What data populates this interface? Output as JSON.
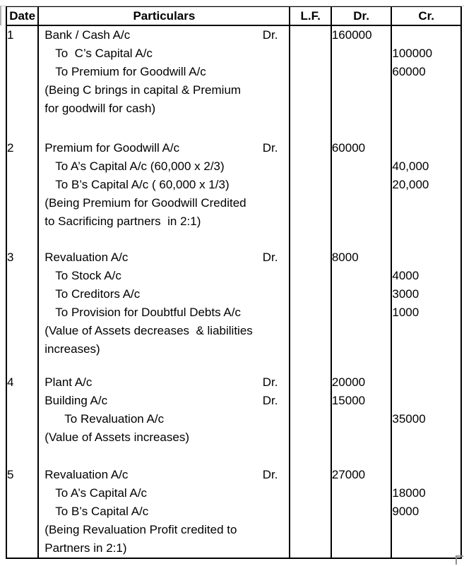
{
  "table": {
    "headers": {
      "date": "Date",
      "particulars": "Particulars",
      "lf": "L.F.",
      "dr": "Dr.",
      "cr": "Cr."
    },
    "entries": [
      {
        "sno": "1",
        "lines": [
          {
            "text": "Bank / Cash A/c",
            "suffix": "Dr.",
            "indent": 0,
            "dr": "160000",
            "cr": ""
          },
          {
            "text": "To  C’s Capital A/c",
            "indent": 1,
            "dr": "",
            "cr": "100000"
          },
          {
            "text": "To Premium for Goodwill A/c",
            "indent": 1,
            "dr": "",
            "cr": "60000"
          },
          {
            "text": "(Being C brings in capital & Premium",
            "indent": 0,
            "dr": "",
            "cr": ""
          },
          {
            "text": "for goodwill for cash)",
            "indent": 0,
            "dr": "",
            "cr": ""
          }
        ]
      },
      {
        "sno": "2",
        "lines": [
          {
            "text": "Premium for Goodwill A/c",
            "suffix": "Dr.",
            "indent": 0,
            "dr": "60000",
            "cr": ""
          },
          {
            "text": "To A’s Capital A/c (60,000 x 2/3)",
            "indent": 1,
            "dr": "",
            "cr": "40,000"
          },
          {
            "text": "To B’s Capital A/c ( 60,000 x 1/3)",
            "indent": 1,
            "dr": "",
            "cr": "20,000"
          },
          {
            "text": "(Being Premium for Goodwill Credited",
            "indent": 0,
            "dr": "",
            "cr": ""
          },
          {
            "text": "to Sacrificing partners  in 2:1)",
            "indent": 0,
            "dr": "",
            "cr": ""
          }
        ]
      },
      {
        "sno": "3",
        "lines": [
          {
            "text": "Revaluation A/c",
            "suffix": "Dr.",
            "indent": 0,
            "dr": "8000",
            "cr": ""
          },
          {
            "text": "To Stock A/c",
            "indent": 1,
            "dr": "",
            "cr": "4000"
          },
          {
            "text": "To Creditors A/c",
            "indent": 1,
            "dr": "",
            "cr": "3000"
          },
          {
            "text": "To Provision for Doubtful Debts A/c",
            "indent": 1,
            "dr": "",
            "cr": "1000"
          },
          {
            "text": "(Value of Assets decreases  & liabilities",
            "indent": 0,
            "dr": "",
            "cr": ""
          },
          {
            "text": "increases)",
            "indent": 0,
            "dr": "",
            "cr": ""
          }
        ]
      },
      {
        "sno": "4",
        "lines": [
          {
            "text": "Plant A/c",
            "suffix": "Dr.",
            "indent": 0,
            "dr": "20000",
            "cr": ""
          },
          {
            "text": "Building A/c",
            "suffix": "Dr.",
            "indent": 0,
            "dr": "15000",
            "cr": ""
          },
          {
            "text": "To Revaluation A/c",
            "indent": 2,
            "dr": "",
            "cr": "35000"
          },
          {
            "text": "(Value of Assets increases)",
            "indent": 0,
            "dr": "",
            "cr": ""
          }
        ]
      },
      {
        "sno": "5",
        "lines": [
          {
            "text": "Revaluation A/c",
            "suffix": "Dr.",
            "indent": 0,
            "dr": "27000",
            "cr": ""
          },
          {
            "text": "To A’s Capital A/c",
            "indent": 1,
            "dr": "",
            "cr": "18000"
          },
          {
            "text": "To B’s Capital A/c",
            "indent": 1,
            "dr": "",
            "cr": "9000"
          },
          {
            "text": "(Being Revaluation Profit credited to",
            "indent": 0,
            "dr": "",
            "cr": ""
          },
          {
            "text": "Partners in 2:1)",
            "indent": 0,
            "dr": "",
            "cr": ""
          }
        ]
      }
    ]
  }
}
